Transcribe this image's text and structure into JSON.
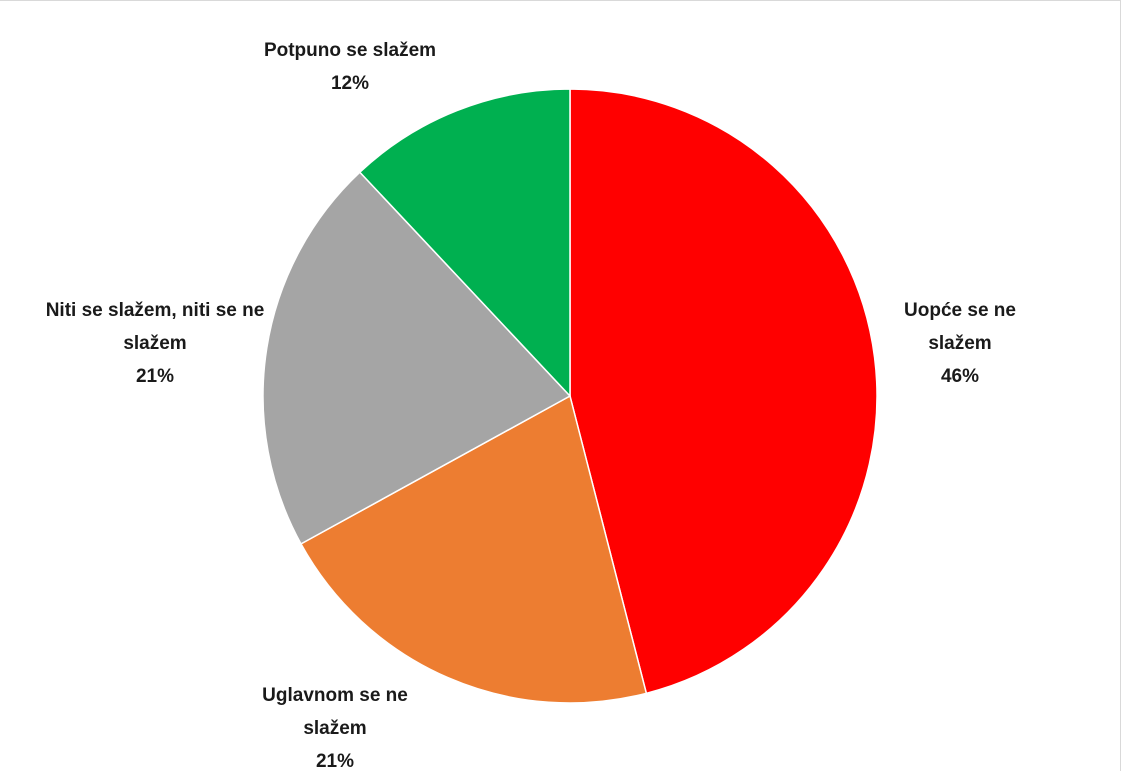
{
  "chart_data": {
    "type": "pie",
    "categories": [
      "Uopće se ne slažem",
      "Uglavnom se ne slažem",
      "Niti se slažem, niti se ne slažem",
      "Potpuno se slažem"
    ],
    "values": [
      46,
      21,
      21,
      12
    ],
    "value_labels": [
      "46%",
      "21%",
      "21%",
      "12%"
    ],
    "colors": [
      "#ff0000",
      "#ed7d31",
      "#a5a5a5",
      "#00b050"
    ]
  }
}
